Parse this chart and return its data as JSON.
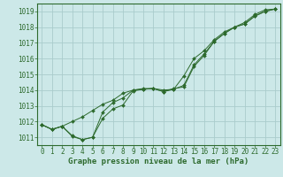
{
  "hours": [
    0,
    1,
    2,
    3,
    4,
    5,
    6,
    7,
    8,
    9,
    10,
    11,
    12,
    13,
    14,
    15,
    16,
    17,
    18,
    19,
    20,
    21,
    22,
    23
  ],
  "line1": [
    1011.8,
    1011.5,
    1011.7,
    1011.1,
    1010.85,
    1011.0,
    1012.2,
    1012.8,
    1013.05,
    1013.95,
    1014.05,
    1014.1,
    1013.9,
    1014.1,
    1014.2,
    1015.5,
    1016.2,
    1017.1,
    1017.6,
    1018.0,
    1018.2,
    1018.7,
    1019.0,
    1019.15
  ],
  "line2": [
    1011.8,
    1011.5,
    1011.7,
    1011.05,
    1010.85,
    1011.0,
    1012.6,
    1013.2,
    1013.5,
    1014.0,
    1014.1,
    1014.1,
    1013.9,
    1014.05,
    1014.9,
    1016.0,
    1016.5,
    1017.2,
    1017.7,
    1018.0,
    1018.3,
    1018.8,
    1019.1,
    1019.15
  ],
  "line3": [
    1011.8,
    1011.5,
    1011.7,
    1012.0,
    1012.3,
    1012.7,
    1013.1,
    1013.35,
    1013.8,
    1014.0,
    1014.05,
    1014.1,
    1014.0,
    1014.05,
    1014.3,
    1015.6,
    1016.3,
    1017.1,
    1017.6,
    1018.0,
    1018.2,
    1018.7,
    1019.0,
    1019.15
  ],
  "line_color": "#2d6a2d",
  "bg_color": "#cce8e8",
  "grid_color": "#aacccc",
  "xlabel": "Graphe pression niveau de la mer (hPa)",
  "ylim": [
    1010.5,
    1019.5
  ],
  "xlim": [
    -0.5,
    23.5
  ],
  "yticks": [
    1011,
    1012,
    1013,
    1014,
    1015,
    1016,
    1017,
    1018,
    1019
  ],
  "xticks": [
    0,
    1,
    2,
    3,
    4,
    5,
    6,
    7,
    8,
    9,
    10,
    11,
    12,
    13,
    14,
    15,
    16,
    17,
    18,
    19,
    20,
    21,
    22,
    23
  ],
  "tick_fontsize": 5.5,
  "label_fontsize": 6.5
}
